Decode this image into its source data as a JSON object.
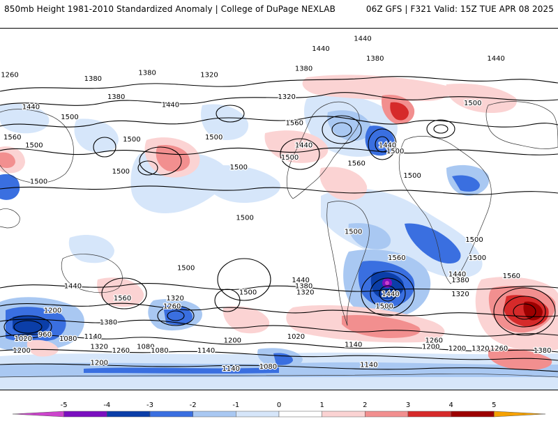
{
  "header": {
    "left_title": "850mb Height 1981-2010 Standardized Anomaly | College of DuPage NEXLAB",
    "right_title": "06Z GFS | F321 Valid: 15Z TUE APR 08 2025"
  },
  "map": {
    "projection": "global equirectangular",
    "contour_labels": [
      {
        "text": "1380",
        "lon": 95,
        "lat": 67
      },
      {
        "text": "1320",
        "lon": 135,
        "lat": 66
      },
      {
        "text": "1380",
        "lon": 60,
        "lat": 64
      },
      {
        "text": "1260",
        "lon": 5,
        "lat": 66
      },
      {
        "text": "1440",
        "lon": 20,
        "lat": 50
      },
      {
        "text": "1380",
        "lon": 75,
        "lat": 55
      },
      {
        "text": "1440",
        "lon": 110,
        "lat": 51
      },
      {
        "text": "1320",
        "lon": 185,
        "lat": 55
      },
      {
        "text": "1380",
        "lon": 196,
        "lat": 69
      },
      {
        "text": "1440",
        "lon": 207,
        "lat": 79
      },
      {
        "text": "1440",
        "lon": 234,
        "lat": 84
      },
      {
        "text": "1380",
        "lon": 242,
        "lat": 74
      },
      {
        "text": "1440",
        "lon": 320,
        "lat": 74
      },
      {
        "text": "1500",
        "lon": 305,
        "lat": 52
      },
      {
        "text": "1560",
        "lon": 190,
        "lat": 42
      },
      {
        "text": "1440",
        "lon": 196,
        "lat": 31
      },
      {
        "text": "1500",
        "lon": 187,
        "lat": 25
      },
      {
        "text": "1560",
        "lon": 230,
        "lat": 22
      },
      {
        "text": "1440",
        "lon": 250,
        "lat": 31
      },
      {
        "text": "1500",
        "lon": 255,
        "lat": 28
      },
      {
        "text": "1500",
        "lon": 45,
        "lat": 45
      },
      {
        "text": "1500",
        "lon": 85,
        "lat": 34
      },
      {
        "text": "1500",
        "lon": 138,
        "lat": 35
      },
      {
        "text": "1560",
        "lon": 8,
        "lat": 35
      },
      {
        "text": "1500",
        "lon": 22,
        "lat": 31
      },
      {
        "text": "1500",
        "lon": 25,
        "lat": 13
      },
      {
        "text": "1500",
        "lon": 78,
        "lat": 18
      },
      {
        "text": "1500",
        "lon": 154,
        "lat": 20
      },
      {
        "text": "1500",
        "lon": 158,
        "lat": -5
      },
      {
        "text": "1500",
        "lon": 266,
        "lat": 16
      },
      {
        "text": "1500",
        "lon": 228,
        "lat": -12
      },
      {
        "text": "1500",
        "lon": 306,
        "lat": -16
      },
      {
        "text": "1500",
        "lon": 308,
        "lat": -25
      },
      {
        "text": "1560",
        "lon": 330,
        "lat": -34
      },
      {
        "text": "1500",
        "lon": 120,
        "lat": -30
      },
      {
        "text": "1560",
        "lon": 79,
        "lat": -45
      },
      {
        "text": "1440",
        "lon": 47,
        "lat": -39
      },
      {
        "text": "1320",
        "lon": 113,
        "lat": -45
      },
      {
        "text": "1260",
        "lon": 111,
        "lat": -49
      },
      {
        "text": "1200",
        "lon": 34,
        "lat": -51
      },
      {
        "text": "1380",
        "lon": 70,
        "lat": -57
      },
      {
        "text": "960",
        "lon": 29,
        "lat": -63
      },
      {
        "text": "1020",
        "lon": 15,
        "lat": -65
      },
      {
        "text": "1080",
        "lon": 44,
        "lat": -65
      },
      {
        "text": "1140",
        "lon": 60,
        "lat": -64
      },
      {
        "text": "1320",
        "lon": 64,
        "lat": -69
      },
      {
        "text": "1260",
        "lon": 78,
        "lat": -71
      },
      {
        "text": "1200",
        "lon": 14,
        "lat": -71
      },
      {
        "text": "1080",
        "lon": 94,
        "lat": -69
      },
      {
        "text": "1080",
        "lon": 103,
        "lat": -71
      },
      {
        "text": "1140",
        "lon": 133,
        "lat": -71
      },
      {
        "text": "1200",
        "lon": 64,
        "lat": -77
      },
      {
        "text": "1200",
        "lon": 150,
        "lat": -66
      },
      {
        "text": "1500",
        "lon": 160,
        "lat": -42
      },
      {
        "text": "1440",
        "lon": 194,
        "lat": -36
      },
      {
        "text": "1380",
        "lon": 196,
        "lat": -39
      },
      {
        "text": "1320",
        "lon": 197,
        "lat": -42
      },
      {
        "text": "1440",
        "lon": 252,
        "lat": -43
      },
      {
        "text": "1500",
        "lon": 248,
        "lat": -49
      },
      {
        "text": "1440",
        "lon": 295,
        "lat": -33
      },
      {
        "text": "1380",
        "lon": 297,
        "lat": -36
      },
      {
        "text": "1320",
        "lon": 297,
        "lat": -43
      },
      {
        "text": "1560",
        "lon": 256,
        "lat": -25
      },
      {
        "text": "1020",
        "lon": 191,
        "lat": -64
      },
      {
        "text": "1140",
        "lon": 228,
        "lat": -68
      },
      {
        "text": "1260",
        "lon": 280,
        "lat": -66
      },
      {
        "text": "1200",
        "lon": 278,
        "lat": -69
      },
      {
        "text": "1200",
        "lon": 295,
        "lat": -70
      },
      {
        "text": "1320",
        "lon": 310,
        "lat": -70
      },
      {
        "text": "1260",
        "lon": 322,
        "lat": -70
      },
      {
        "text": "1380",
        "lon": 350,
        "lat": -71
      },
      {
        "text": "1080",
        "lon": 173,
        "lat": -79
      },
      {
        "text": "1140",
        "lon": 149,
        "lat": -80
      },
      {
        "text": "1140",
        "lon": 238,
        "lat": -78
      }
    ]
  },
  "colorbar": {
    "ticks": [
      "-5",
      "-4",
      "-3",
      "-2",
      "-1",
      "0",
      "1",
      "2",
      "3",
      "4",
      "5"
    ],
    "colors": [
      "#cc44cc",
      "#7a0fbf",
      "#0b3ea8",
      "#3a6fe0",
      "#a9c8f2",
      "#d6e6fa",
      "#ffffff",
      "#fbd3d3",
      "#f28f8f",
      "#d62a2a",
      "#9c0000",
      "#f5a100"
    ]
  }
}
